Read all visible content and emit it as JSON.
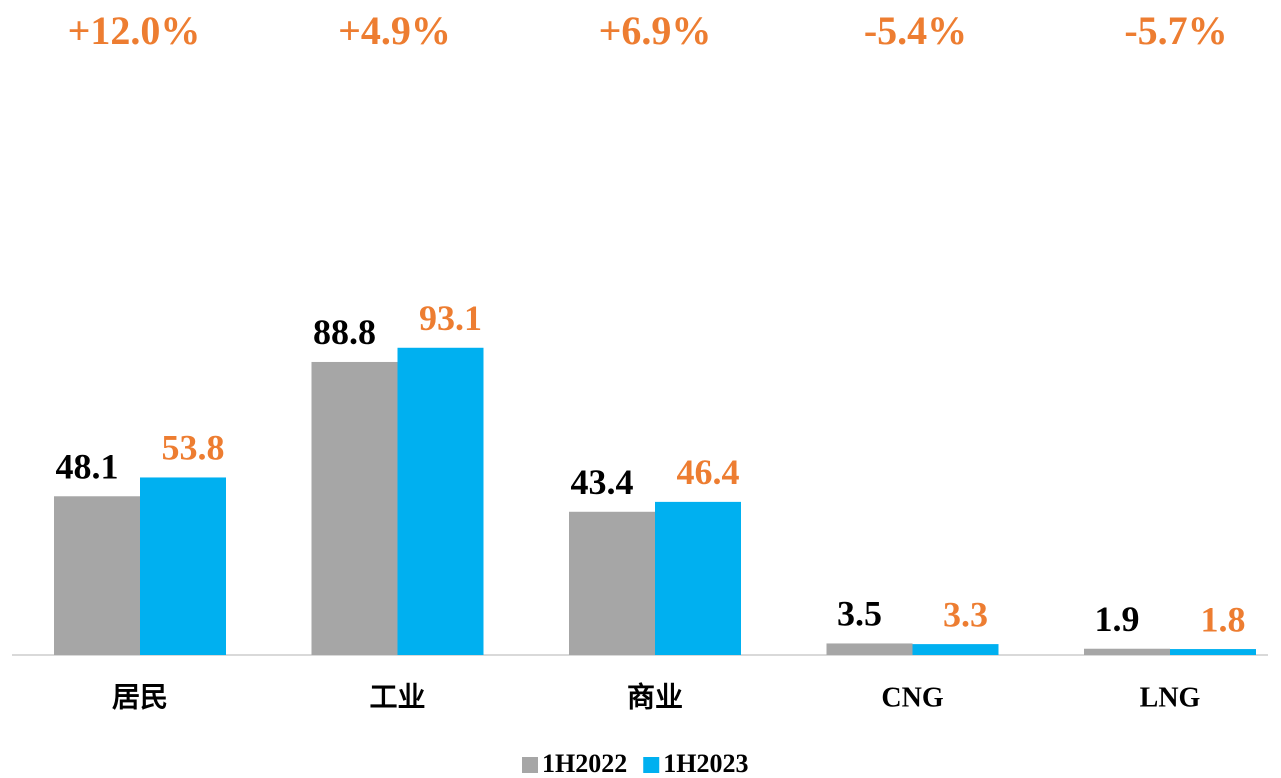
{
  "chart_data": {
    "type": "bar",
    "categories": [
      "居民",
      "工业",
      "商业",
      "CNG",
      "LNG"
    ],
    "series": [
      {
        "name": "1H2022",
        "color": "#a6a6a6",
        "label_color": "#000000",
        "values": [
          48.1,
          88.8,
          43.4,
          3.5,
          1.9
        ]
      },
      {
        "name": "1H2023",
        "color": "#00b0f0",
        "label_color": "#ed7d31",
        "values": [
          53.8,
          93.1,
          46.4,
          3.3,
          1.8
        ]
      }
    ],
    "annotations": [
      "+12.0%",
      "+4.9%",
      "+6.9%",
      "-5.4%",
      "-5.7%"
    ],
    "ylim": [
      0,
      100
    ],
    "legend": "bottom"
  }
}
